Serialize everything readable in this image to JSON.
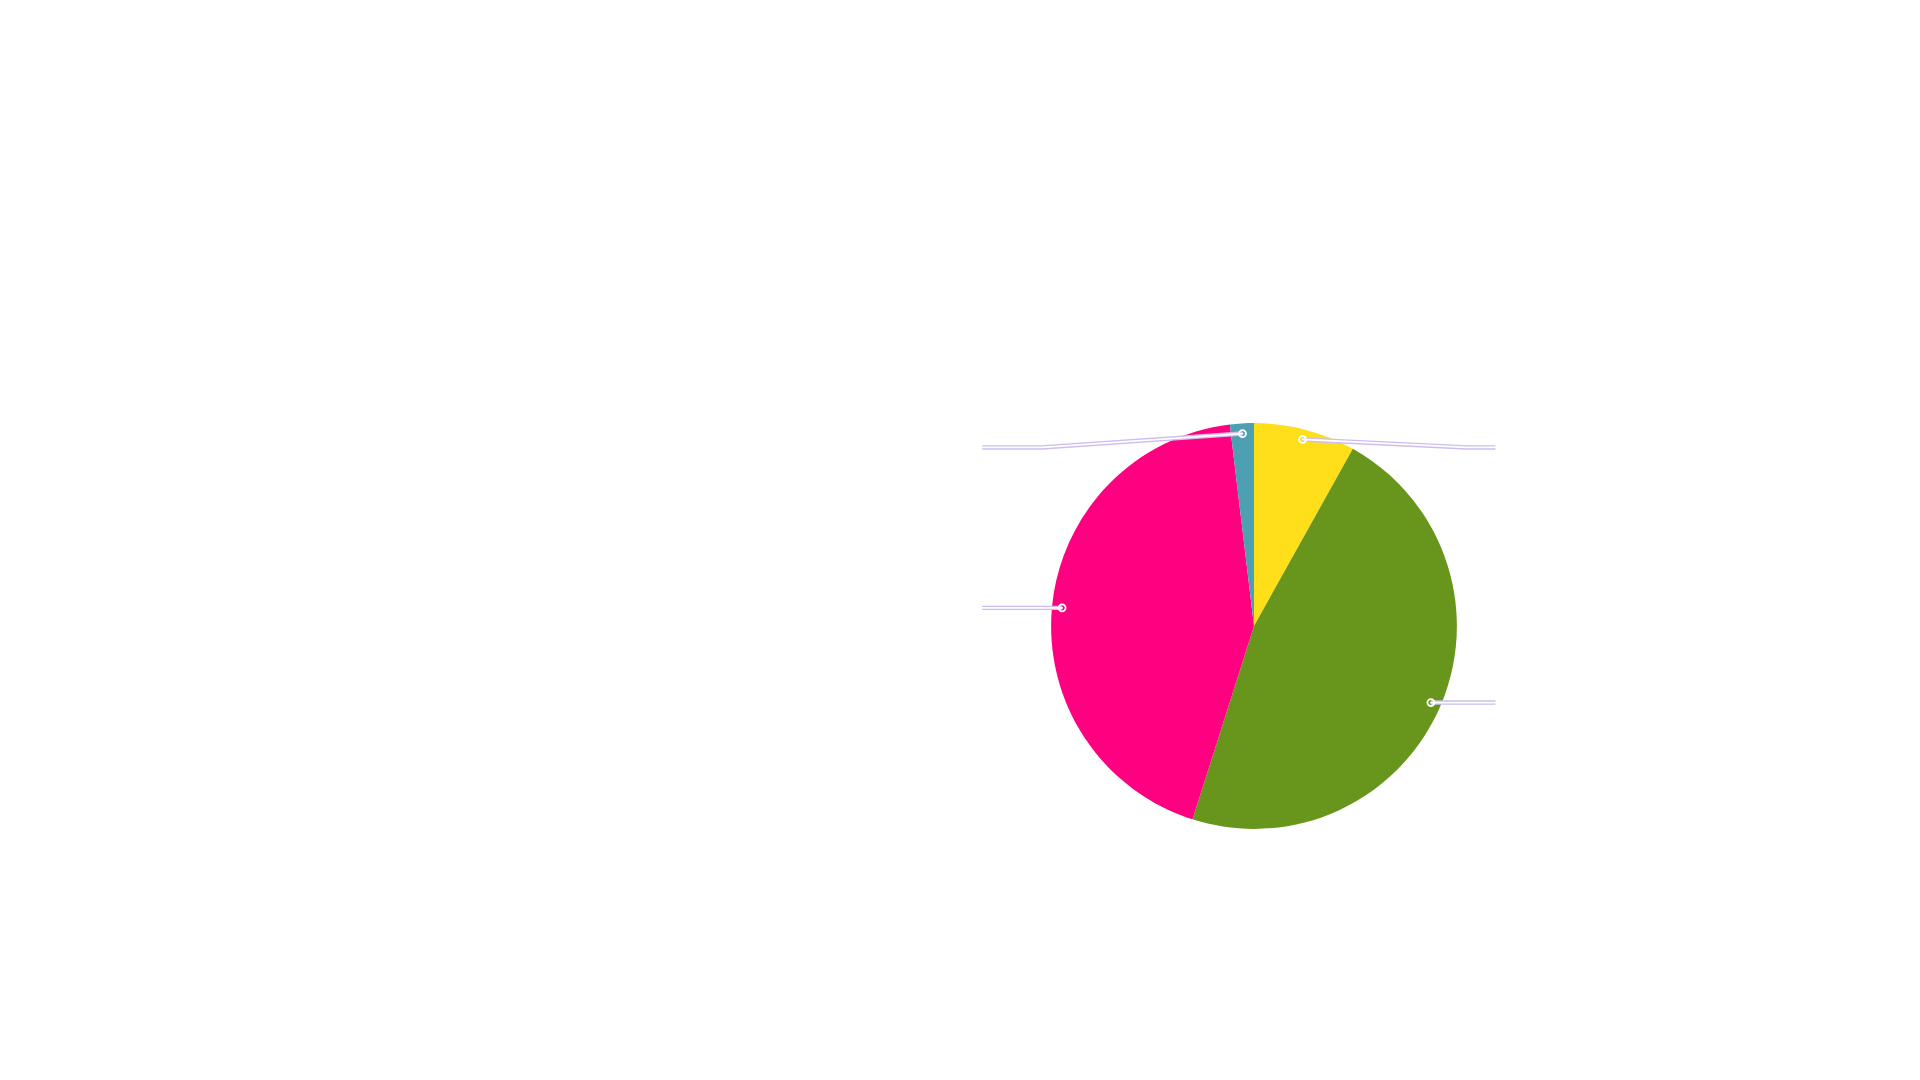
{
  "chart_data": {
    "type": "pie",
    "categories": [
      null,
      null,
      null,
      null
    ],
    "values": [
      8.1,
      46.8,
      43.2,
      1.9
    ],
    "colors": [
      "#ffde1a",
      "#68961c",
      "#ff0080",
      "#4ca0b2"
    ]
  }
}
